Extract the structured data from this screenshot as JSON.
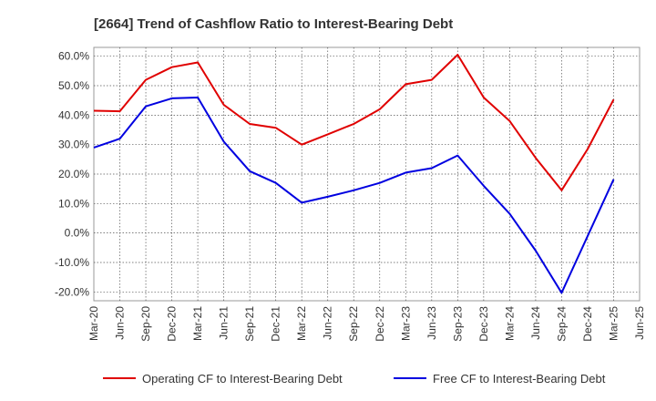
{
  "chart_data": {
    "type": "line",
    "title": "[2664]  Trend of Cashflow Ratio to Interest-Bearing Debt",
    "xlabel": "",
    "ylabel": "",
    "ylim": [
      -23,
      63
    ],
    "y_ticks": [
      -20,
      -10,
      0,
      10,
      20,
      30,
      40,
      50,
      60
    ],
    "y_tick_labels": [
      "-20.0%",
      "-10.0%",
      "0.0%",
      "10.0%",
      "20.0%",
      "30.0%",
      "40.0%",
      "50.0%",
      "60.0%"
    ],
    "categories": [
      "Mar-20",
      "Jun-20",
      "Sep-20",
      "Dec-20",
      "Mar-21",
      "Jun-21",
      "Sep-21",
      "Dec-21",
      "Mar-22",
      "Jun-22",
      "Sep-22",
      "Dec-22",
      "Mar-23",
      "Jun-23",
      "Sep-23",
      "Dec-23",
      "Mar-24",
      "Jun-24",
      "Sep-24",
      "Dec-24",
      "Mar-25",
      "Jun-25"
    ],
    "grid": true,
    "legend_position": "bottom",
    "series": [
      {
        "name": "Operating CF to Interest-Bearing Debt",
        "color": "#e00000",
        "values": [
          41.5,
          41.3,
          52.0,
          56.3,
          57.9,
          43.5,
          37.0,
          35.7,
          30.0,
          33.5,
          37.0,
          42.0,
          50.5,
          52.0,
          60.5,
          46.0,
          38.0,
          25.5,
          14.5,
          28.5,
          45.3,
          null
        ]
      },
      {
        "name": "Free CF to Interest-Bearing Debt",
        "color": "#0000e0",
        "values": [
          29.0,
          32.0,
          43.0,
          45.7,
          46.0,
          31.0,
          21.0,
          17.0,
          10.3,
          12.3,
          14.5,
          17.0,
          20.5,
          22.0,
          26.3,
          16.0,
          6.5,
          -6.0,
          -20.3,
          -1.0,
          18.2,
          null
        ]
      }
    ]
  }
}
